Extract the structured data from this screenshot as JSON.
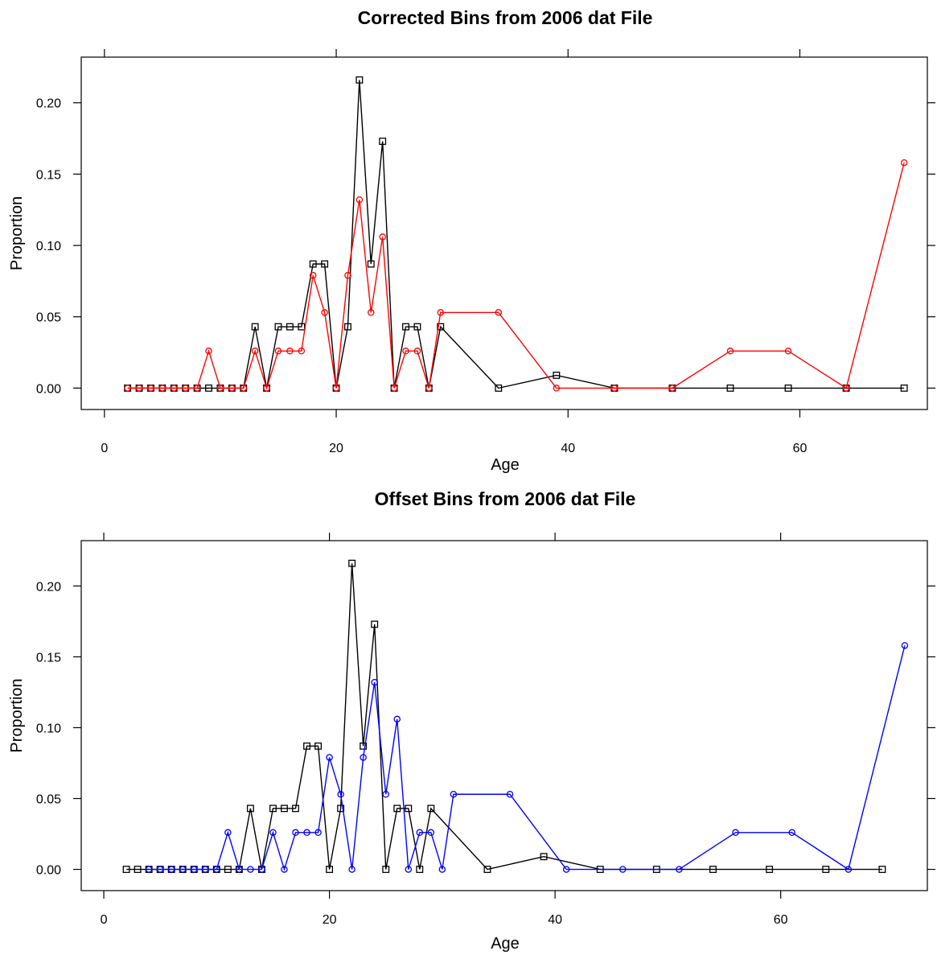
{
  "chart_data": [
    {
      "type": "line",
      "title": "Corrected Bins from 2006 dat File",
      "xlabel": "Age",
      "ylabel": "Proportion",
      "xlim": [
        -2,
        71
      ],
      "ylim": [
        -0.015,
        0.232
      ],
      "xticks": [
        0,
        20,
        40,
        60
      ],
      "yticks": [
        0.0,
        0.05,
        0.1,
        0.15,
        0.2
      ],
      "ytick_labels": [
        "0.00",
        "0.05",
        "0.10",
        "0.15",
        "0.20"
      ],
      "grid": false,
      "series": [
        {
          "color": "#000000",
          "marker": "square",
          "x": [
            2,
            3,
            4,
            5,
            6,
            7,
            8,
            9,
            10,
            11,
            12,
            13,
            14,
            15,
            16,
            17,
            18,
            19,
            20,
            21,
            22,
            23,
            24,
            25,
            26,
            27,
            28,
            29,
            34,
            39,
            44,
            49,
            54,
            59,
            64,
            69
          ],
          "y": [
            0,
            0,
            0,
            0,
            0,
            0,
            0,
            0,
            0,
            0,
            0,
            0.043,
            0,
            0.043,
            0.043,
            0.043,
            0.087,
            0.087,
            0,
            0.043,
            0.216,
            0.087,
            0.173,
            0,
            0.043,
            0.043,
            0,
            0.043,
            0,
            0.009,
            0,
            0,
            0,
            0,
            0,
            0
          ]
        },
        {
          "color": "#ff0000",
          "marker": "circle",
          "x": [
            2,
            3,
            4,
            5,
            6,
            7,
            8,
            9,
            10,
            11,
            12,
            13,
            14,
            15,
            16,
            17,
            18,
            19,
            20,
            21,
            22,
            23,
            24,
            25,
            26,
            27,
            28,
            29,
            34,
            39,
            44,
            49,
            54,
            59,
            64,
            69
          ],
          "y": [
            0,
            0,
            0,
            0,
            0,
            0,
            0,
            0.026,
            0,
            0,
            0,
            0.026,
            0,
            0.026,
            0.026,
            0.026,
            0.079,
            0.053,
            0,
            0.079,
            0.132,
            0.053,
            0.106,
            0,
            0.026,
            0.026,
            0,
            0.053,
            0.053,
            0,
            0,
            0,
            0.026,
            0.026,
            0,
            0.158
          ]
        }
      ]
    },
    {
      "type": "line",
      "title": "Offset Bins from 2006 dat File",
      "xlabel": "Age",
      "ylabel": "Proportion",
      "xlim": [
        -2,
        73
      ],
      "ylim": [
        -0.015,
        0.232
      ],
      "xticks": [
        0,
        20,
        40,
        60
      ],
      "yticks": [
        0.0,
        0.05,
        0.1,
        0.15,
        0.2
      ],
      "ytick_labels": [
        "0.00",
        "0.05",
        "0.10",
        "0.15",
        "0.20"
      ],
      "grid": false,
      "series": [
        {
          "color": "#000000",
          "marker": "square",
          "x": [
            2,
            3,
            4,
            5,
            6,
            7,
            8,
            9,
            10,
            11,
            12,
            13,
            14,
            15,
            16,
            17,
            18,
            19,
            20,
            21,
            22,
            23,
            24,
            25,
            26,
            27,
            28,
            29,
            34,
            39,
            44,
            49,
            54,
            59,
            64,
            69
          ],
          "y": [
            0,
            0,
            0,
            0,
            0,
            0,
            0,
            0,
            0,
            0,
            0,
            0.043,
            0,
            0.043,
            0.043,
            0.043,
            0.087,
            0.087,
            0,
            0.043,
            0.216,
            0.087,
            0.173,
            0,
            0.043,
            0.043,
            0,
            0.043,
            0,
            0.009,
            0,
            0,
            0,
            0,
            0,
            0
          ]
        },
        {
          "color": "#0000ff",
          "marker": "circle",
          "x": [
            4,
            5,
            6,
            7,
            8,
            9,
            10,
            11,
            12,
            13,
            14,
            15,
            16,
            17,
            18,
            19,
            20,
            21,
            22,
            23,
            24,
            25,
            26,
            27,
            28,
            29,
            30,
            31,
            36,
            41,
            46,
            51,
            56,
            61,
            66,
            71
          ],
          "y": [
            0,
            0,
            0,
            0,
            0,
            0,
            0,
            0.026,
            0,
            0,
            0,
            0.026,
            0,
            0.026,
            0.026,
            0.026,
            0.079,
            0.053,
            0,
            0.079,
            0.132,
            0.053,
            0.106,
            0,
            0.026,
            0.026,
            0,
            0.053,
            0.053,
            0,
            0,
            0,
            0.026,
            0.026,
            0,
            0.158
          ]
        }
      ]
    }
  ]
}
